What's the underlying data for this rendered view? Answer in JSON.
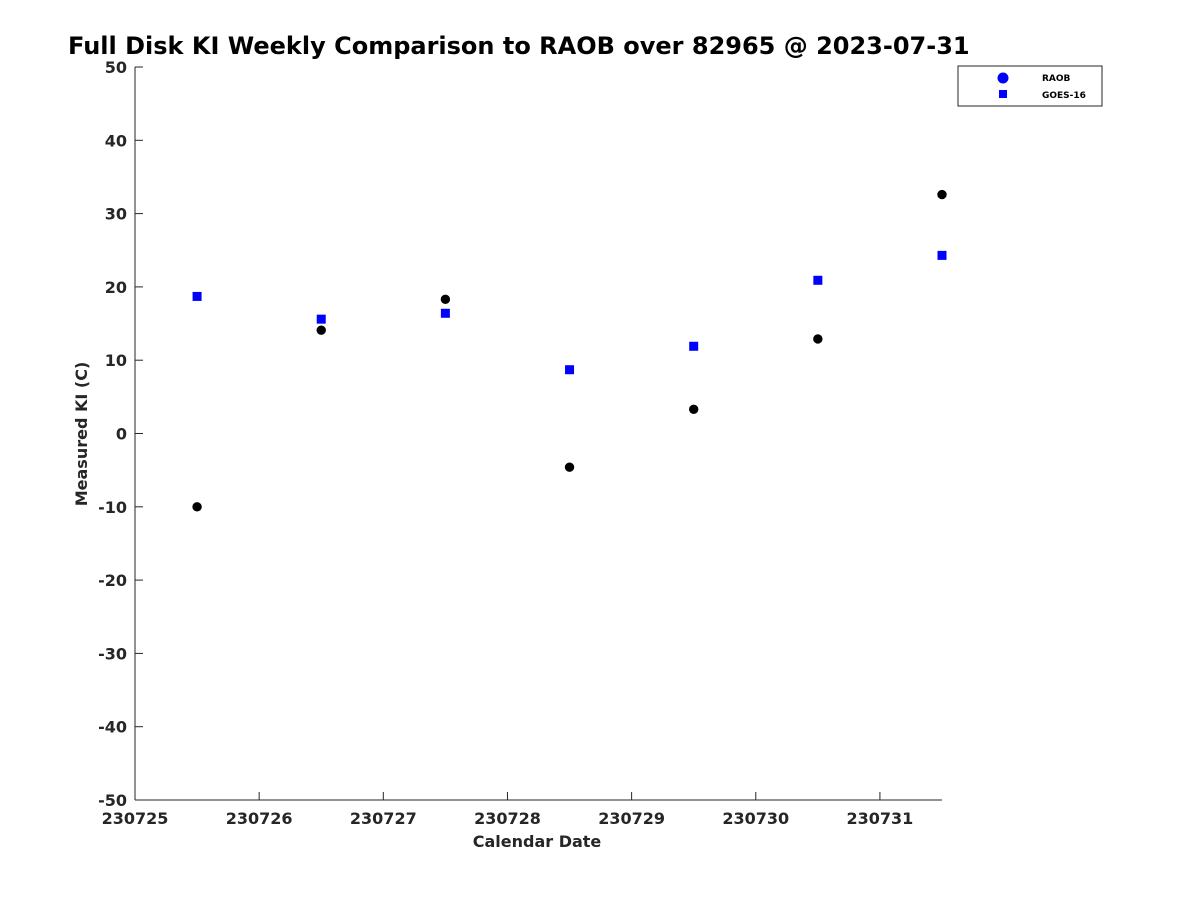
{
  "chart_data": {
    "type": "scatter",
    "title": "Full Disk KI Weekly Comparison to RAOB over 82965 @ 2023-07-31",
    "xlabel": "Calendar Date",
    "ylabel": "Measured KI (C)",
    "xlim": [
      "230725",
      "230731.5"
    ],
    "ylim": [
      -50,
      50
    ],
    "x_ticks": [
      "230725",
      "230726",
      "230727",
      "230728",
      "230729",
      "230730",
      "230731"
    ],
    "y_ticks": [
      50,
      40,
      30,
      20,
      10,
      0,
      -10,
      -20,
      -30,
      -40,
      -50
    ],
    "grid": false,
    "legend_position": "top-right",
    "legend": [
      "RAOB",
      "GOES-16"
    ],
    "series": [
      {
        "name": "RAOB",
        "marker": "circle",
        "color": "#000000",
        "legend_color": "#0000ff",
        "x": [
          230725.5,
          230726.5,
          230727.5,
          230728.5,
          230729.5,
          230730.5,
          230731.5
        ],
        "y": [
          -10.0,
          14.1,
          18.3,
          -4.6,
          3.3,
          12.9,
          32.6
        ]
      },
      {
        "name": "GOES-16",
        "marker": "square",
        "color": "#0000ff",
        "x": [
          230725.5,
          230726.5,
          230727.5,
          230728.5,
          230729.5,
          230730.5,
          230731.5
        ],
        "y": [
          18.7,
          15.6,
          16.4,
          8.7,
          11.9,
          20.9,
          24.3
        ]
      }
    ]
  }
}
